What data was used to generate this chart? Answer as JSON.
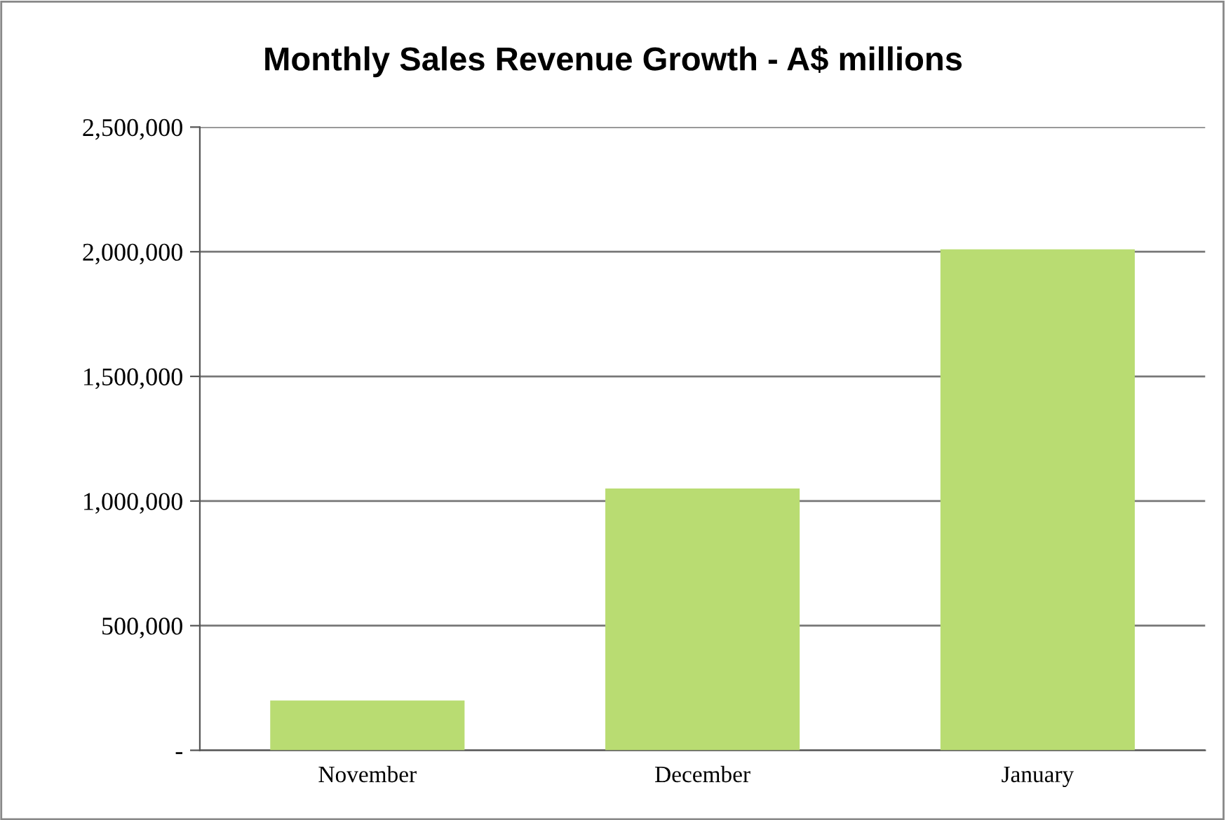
{
  "chart_data": {
    "type": "bar",
    "title": "Monthly Sales Revenue Growth - A$ millions",
    "categories": [
      "November",
      "December",
      "January"
    ],
    "values": [
      200000,
      1050000,
      2010000
    ],
    "color": "#b9dc72",
    "ylim": [
      0,
      2500000
    ],
    "yticks": [
      {
        "value": 0,
        "label": "-"
      },
      {
        "value": 500000,
        "label": "500,000"
      },
      {
        "value": 1000000,
        "label": "1,000,000"
      },
      {
        "value": 1500000,
        "label": "1,500,000"
      },
      {
        "value": 2000000,
        "label": "2,000,000"
      },
      {
        "value": 2500000,
        "label": "2,500,000"
      }
    ],
    "grid": "y"
  }
}
